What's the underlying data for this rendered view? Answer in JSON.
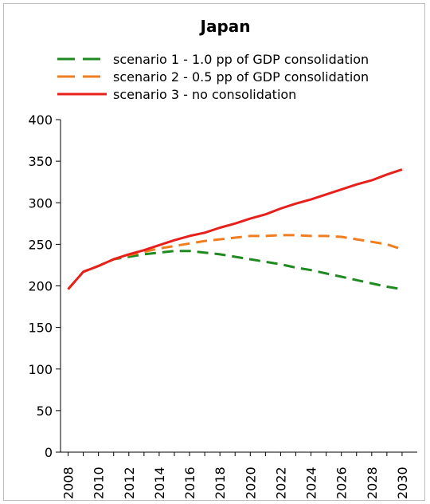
{
  "chart_data": {
    "type": "line",
    "title": "Japan",
    "xlabel": "",
    "ylabel": "",
    "x": [
      2008,
      2009,
      2010,
      2011,
      2012,
      2013,
      2014,
      2015,
      2016,
      2017,
      2018,
      2019,
      2020,
      2021,
      2022,
      2023,
      2024,
      2025,
      2026,
      2027,
      2028,
      2029,
      2030
    ],
    "xticks": [
      "2008",
      "2010",
      "2012",
      "2014",
      "2016",
      "2018",
      "2020",
      "2022",
      "2024",
      "2026",
      "2028",
      "2030"
    ],
    "yticks": [
      "0",
      "50",
      "100",
      "150",
      "200",
      "250",
      "300",
      "350",
      "400"
    ],
    "ylim": [
      0,
      400
    ],
    "xlim": [
      2007.5,
      2031
    ],
    "grid": false,
    "legend_position": "top",
    "series": [
      {
        "name": "scenario 1 - 1.0 pp of GDP consolidation",
        "color": "#1f8a1f",
        "dash": "dashed",
        "values": [
          196,
          217,
          224,
          232,
          235,
          238,
          240,
          242,
          242,
          240,
          238,
          235,
          232,
          229,
          226,
          222,
          219,
          215,
          211,
          207,
          203,
          199,
          196
        ]
      },
      {
        "name": "scenario 2 - 0.5 pp of GDP consolidation",
        "color": "#f07d20",
        "dash": "dashed",
        "values": [
          196,
          217,
          224,
          232,
          237,
          241,
          245,
          248,
          251,
          254,
          256,
          258,
          260,
          260,
          261,
          261,
          260,
          260,
          259,
          256,
          253,
          250,
          244
        ]
      },
      {
        "name": "scenario 3 - no consolidation",
        "color": "#e8201c",
        "dash": "solid",
        "values": [
          196,
          217,
          224,
          232,
          238,
          243,
          249,
          255,
          260,
          264,
          270,
          275,
          281,
          286,
          293,
          299,
          304,
          310,
          316,
          322,
          327,
          334,
          340
        ]
      }
    ]
  }
}
